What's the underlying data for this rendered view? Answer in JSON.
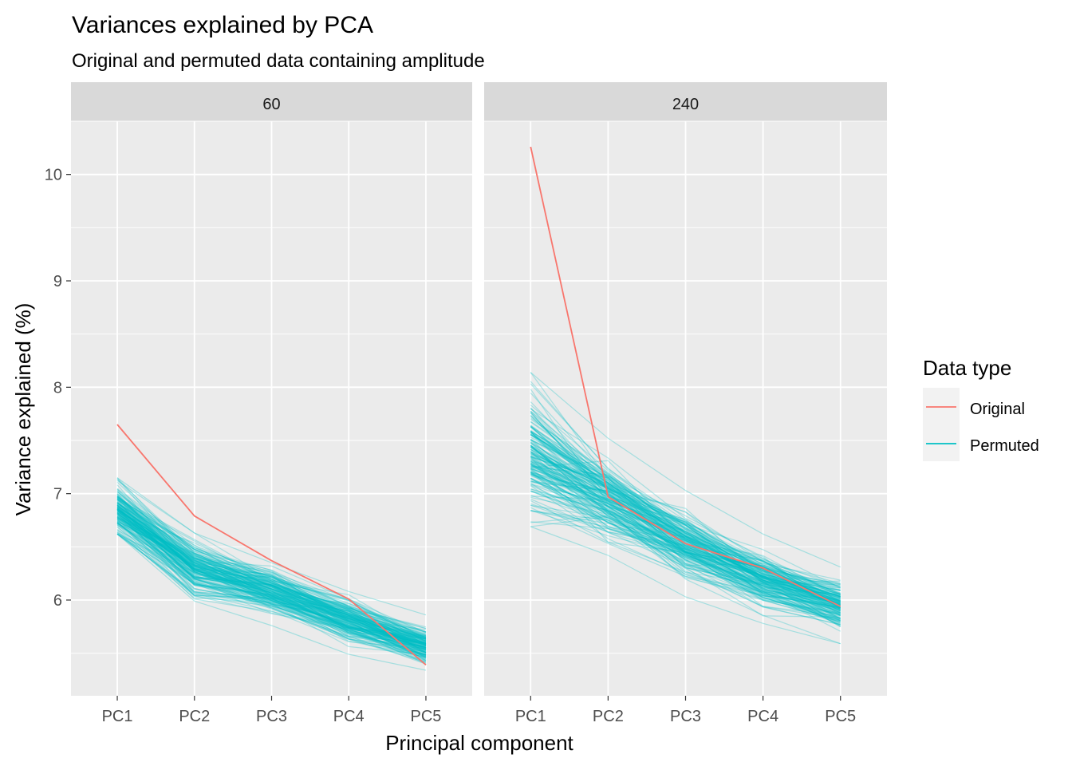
{
  "chart_data": {
    "type": "line",
    "title": "Variances explained by PCA",
    "subtitle": "Original and permuted data containing amplitude",
    "xlabel": "Principal component",
    "ylabel": "Variance explained (%)",
    "categories": [
      "PC1",
      "PC2",
      "PC3",
      "PC4",
      "PC5"
    ],
    "ylim": [
      5.1,
      10.5
    ],
    "y_ticks": [
      6,
      7,
      8,
      9,
      10
    ],
    "grid": true,
    "legend": {
      "title": "Data type",
      "position": "right",
      "entries": [
        {
          "label": "Original",
          "color": "#F8766D"
        },
        {
          "label": "Permuted",
          "color": "#00BFC4"
        }
      ]
    },
    "facets": [
      {
        "label": "60",
        "series": [
          {
            "name": "Original",
            "values": [
              7.65,
              6.79,
              6.37,
              6.01,
              5.39
            ]
          }
        ],
        "permuted_band": {
          "center": [
            6.85,
            6.29,
            6.09,
            5.81,
            5.56
          ],
          "spread": [
            0.16,
            0.17,
            0.14,
            0.13,
            0.12
          ],
          "min": [
            6.62,
            5.99,
            5.76,
            5.49,
            5.34
          ],
          "max": [
            7.15,
            6.63,
            6.35,
            6.08,
            5.86
          ]
        }
      },
      {
        "label": "240",
        "series": [
          {
            "name": "Original",
            "values": [
              10.26,
              6.97,
              6.53,
              6.3,
              5.94
            ]
          }
        ],
        "permuted_band": {
          "center": [
            7.4,
            6.96,
            6.54,
            6.19,
            5.95
          ],
          "spread": [
            0.35,
            0.23,
            0.2,
            0.18,
            0.15
          ],
          "min": [
            6.69,
            6.42,
            6.03,
            5.78,
            5.59
          ],
          "max": [
            8.14,
            7.52,
            7.03,
            6.62,
            6.31
          ]
        }
      }
    ]
  }
}
